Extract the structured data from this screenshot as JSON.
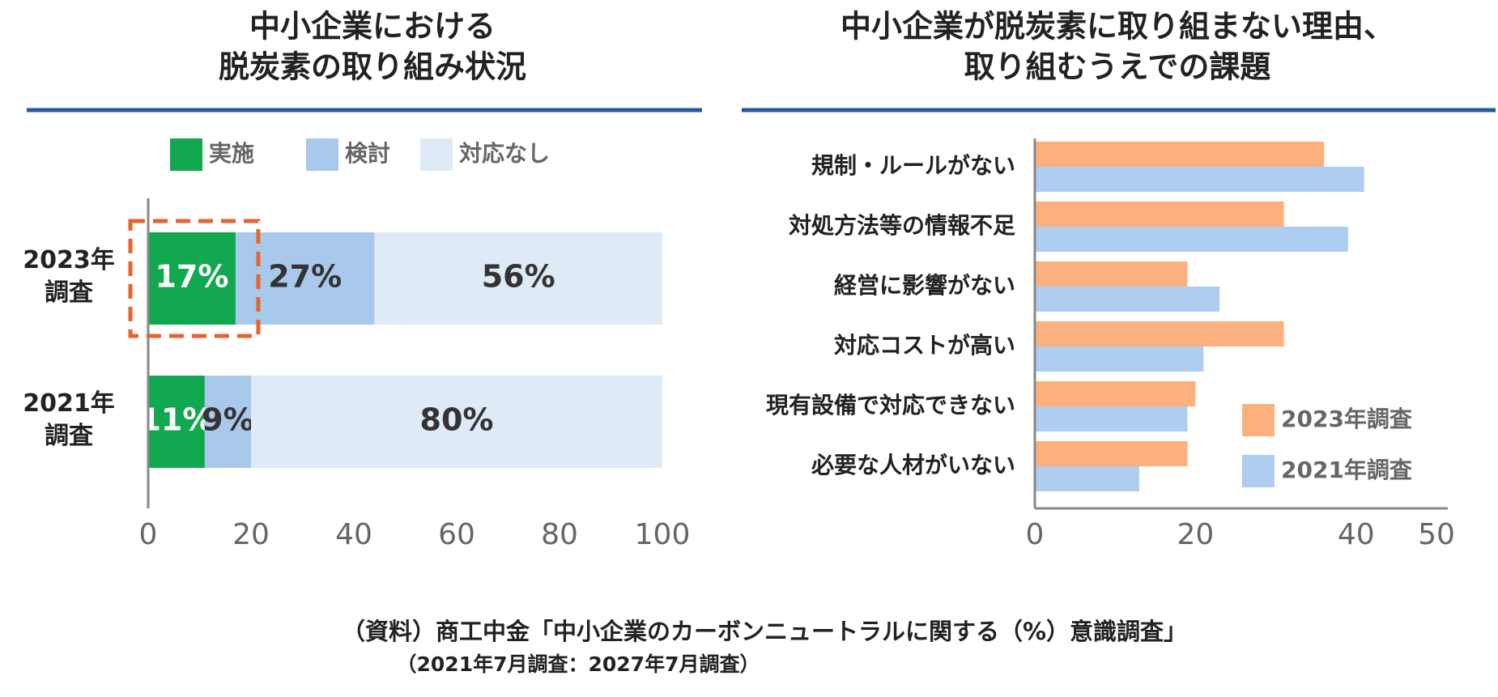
{
  "chart_data": [
    {
      "type": "bar",
      "orientation": "horizontal",
      "stacked": true,
      "title": [
        "中小企業における",
        "脱炭素の取り組み状況"
      ],
      "categories": [
        "2023年調査",
        "2021年調査"
      ],
      "series": [
        {
          "name": "実施",
          "color": "#12a84f",
          "values": [
            17,
            11
          ],
          "value_labels": [
            "17%",
            "11%"
          ],
          "label_color": "#ffffff"
        },
        {
          "name": "検討",
          "color": "#a9c9ec",
          "values": [
            27,
            9
          ],
          "value_labels": [
            "27%",
            "9%"
          ],
          "label_color": "#333333"
        },
        {
          "name": "対応なし",
          "color": "#deeaf5",
          "values": [
            56,
            80
          ],
          "value_labels": [
            "56%",
            "80%"
          ],
          "label_color": "#333333"
        }
      ],
      "xlim": [
        0,
        100
      ],
      "xticks": [
        0,
        20,
        40,
        60,
        80,
        100
      ],
      "legend": "top"
    },
    {
      "type": "bar",
      "orientation": "horizontal",
      "stacked": false,
      "title": [
        "中小企業が脱炭素に取り組まない理由、",
        "取り組むうえでの課題"
      ],
      "categories": [
        "規制・ルールがない",
        "対処方法等の情報不足",
        "経営に影響がない",
        "対応コストが高い",
        "現有設備で対応できない",
        "必要な人材がいない"
      ],
      "series": [
        {
          "name": "2023年調査",
          "color": "#fbb07e",
          "values": [
            36,
            31,
            19,
            31,
            20,
            19
          ]
        },
        {
          "name": "2021年調査",
          "color": "#aecdf1",
          "values": [
            41,
            39,
            23,
            21,
            19,
            13
          ]
        }
      ],
      "xlim": [
        0,
        50
      ],
      "xticks": [
        0,
        20,
        40,
        50
      ],
      "legend": "lower right"
    }
  ],
  "source": [
    "（資料）商工中金「中小企業のカーボンニュートラルに関する（%）意識調査」",
    "（2021年7月調査：2027年7月調査）"
  ]
}
